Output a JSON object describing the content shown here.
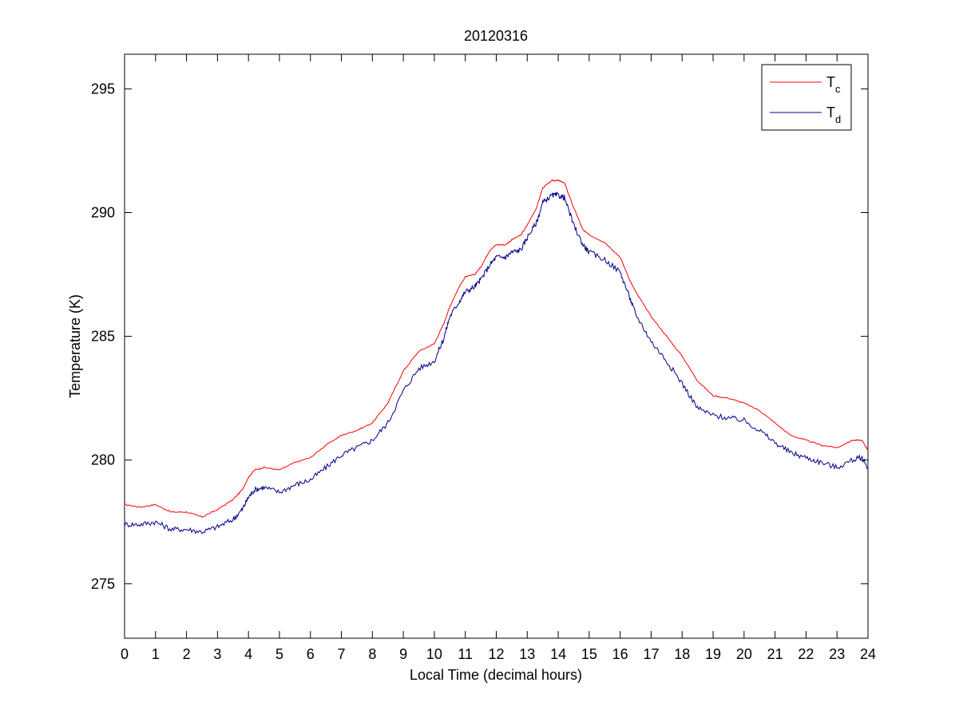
{
  "chart_data": {
    "type": "line",
    "title": "20120316",
    "xlabel": "Local Time (decimal hours)",
    "ylabel": "Temperature (K)",
    "xlim": [
      0,
      24
    ],
    "ylim": [
      272.8,
      296.4
    ],
    "xticks": [
      0,
      1,
      2,
      3,
      4,
      5,
      6,
      7,
      8,
      9,
      10,
      11,
      12,
      13,
      14,
      15,
      16,
      17,
      18,
      19,
      20,
      21,
      22,
      23,
      24
    ],
    "yticks": [
      275,
      280,
      285,
      290,
      295
    ],
    "grid": false,
    "legend_position": "top-right",
    "series": [
      {
        "name": "T",
        "subscript": "c",
        "color": "#ff0000",
        "x": [
          0,
          0.5,
          1,
          1.5,
          2,
          2.5,
          3,
          3.5,
          3.8,
          4,
          4.2,
          4.5,
          5,
          5.5,
          6,
          6.5,
          7,
          7.5,
          8,
          8.5,
          9,
          9.5,
          10,
          10.3,
          10.5,
          10.8,
          11,
          11.3,
          11.5,
          11.8,
          12,
          12.3,
          12.5,
          12.8,
          13,
          13.3,
          13.5,
          13.8,
          14,
          14.2,
          14.5,
          14.8,
          15,
          15.5,
          16,
          16.3,
          16.5,
          17,
          17.5,
          18,
          18.5,
          19,
          19.5,
          20,
          20.5,
          21,
          21.5,
          22,
          22.5,
          23,
          23.5,
          23.8,
          24
        ],
        "values": [
          278.2,
          278.1,
          278.2,
          277.9,
          277.9,
          277.7,
          278.0,
          278.4,
          278.8,
          279.3,
          279.6,
          279.7,
          279.6,
          279.9,
          280.1,
          280.6,
          281.0,
          281.2,
          281.5,
          282.3,
          283.6,
          284.4,
          284.7,
          285.5,
          286.2,
          287.0,
          287.4,
          287.5,
          287.8,
          288.5,
          288.7,
          288.7,
          288.9,
          289.1,
          289.5,
          290.2,
          291.0,
          291.3,
          291.3,
          291.2,
          290.2,
          289.3,
          289.1,
          288.8,
          288.2,
          287.3,
          286.8,
          285.8,
          285.0,
          284.2,
          283.2,
          282.6,
          282.5,
          282.3,
          282.0,
          281.5,
          281.0,
          280.8,
          280.6,
          280.5,
          280.8,
          280.8,
          280.4
        ]
      },
      {
        "name": "T",
        "subscript": "d",
        "color": "#00008b",
        "x": [
          0,
          0.5,
          1,
          1.5,
          2,
          2.5,
          3,
          3.5,
          3.8,
          4,
          4.2,
          4.5,
          5,
          5.5,
          6,
          6.5,
          7,
          7.5,
          8,
          8.5,
          9,
          9.5,
          10,
          10.3,
          10.5,
          10.8,
          11,
          11.3,
          11.5,
          11.8,
          12,
          12.3,
          12.5,
          12.8,
          13,
          13.3,
          13.5,
          13.8,
          14,
          14.2,
          14.5,
          14.8,
          15,
          15.5,
          16,
          16.3,
          16.5,
          17,
          17.5,
          18,
          18.5,
          19,
          19.5,
          20,
          20.5,
          21,
          21.5,
          22,
          22.5,
          23,
          23.5,
          23.8,
          24
        ],
        "values": [
          277.4,
          277.4,
          277.5,
          277.2,
          277.2,
          277.1,
          277.3,
          277.6,
          278.0,
          278.5,
          278.8,
          278.9,
          278.7,
          279.0,
          279.2,
          279.7,
          280.2,
          280.5,
          280.8,
          281.5,
          282.8,
          283.7,
          284.0,
          284.9,
          285.8,
          286.4,
          286.8,
          287.0,
          287.3,
          287.9,
          288.2,
          288.2,
          288.4,
          288.5,
          289.0,
          289.6,
          290.4,
          290.7,
          290.7,
          290.6,
          289.5,
          288.7,
          288.4,
          288.1,
          287.6,
          286.6,
          285.9,
          284.8,
          284.0,
          283.1,
          282.1,
          281.8,
          281.7,
          281.6,
          281.2,
          280.7,
          280.3,
          280.1,
          279.9,
          279.7,
          280.0,
          280.1,
          279.7
        ]
      }
    ]
  }
}
